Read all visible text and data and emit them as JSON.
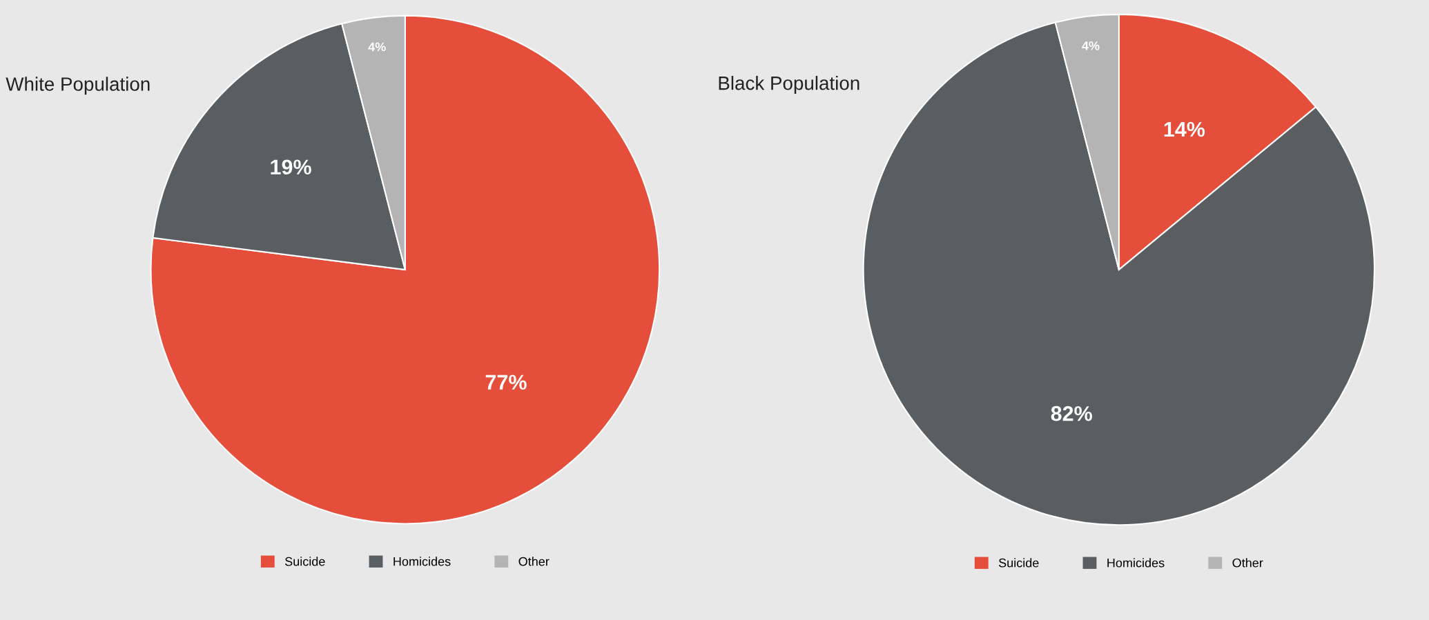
{
  "chart_data": [
    {
      "type": "pie",
      "title": "White Population",
      "categories": [
        "Suicide",
        "Homicides",
        "Other"
      ],
      "values": [
        77,
        19,
        4
      ],
      "colors": [
        "#e44e3b",
        "#5b5e61",
        "#b4b4b4"
      ],
      "data_labels": true,
      "value_labels": [
        "77%",
        "19%",
        "4%"
      ],
      "legend": "bottom"
    },
    {
      "type": "pie",
      "title": "Black Population",
      "categories": [
        "Suicide",
        "Homicides",
        "Other"
      ],
      "values": [
        14,
        82,
        4
      ],
      "colors": [
        "#e44e3b",
        "#5b5e61",
        "#b4b4b4"
      ],
      "data_labels": true,
      "value_labels": [
        "14%",
        "82%",
        "4%"
      ],
      "legend": "bottom"
    }
  ]
}
